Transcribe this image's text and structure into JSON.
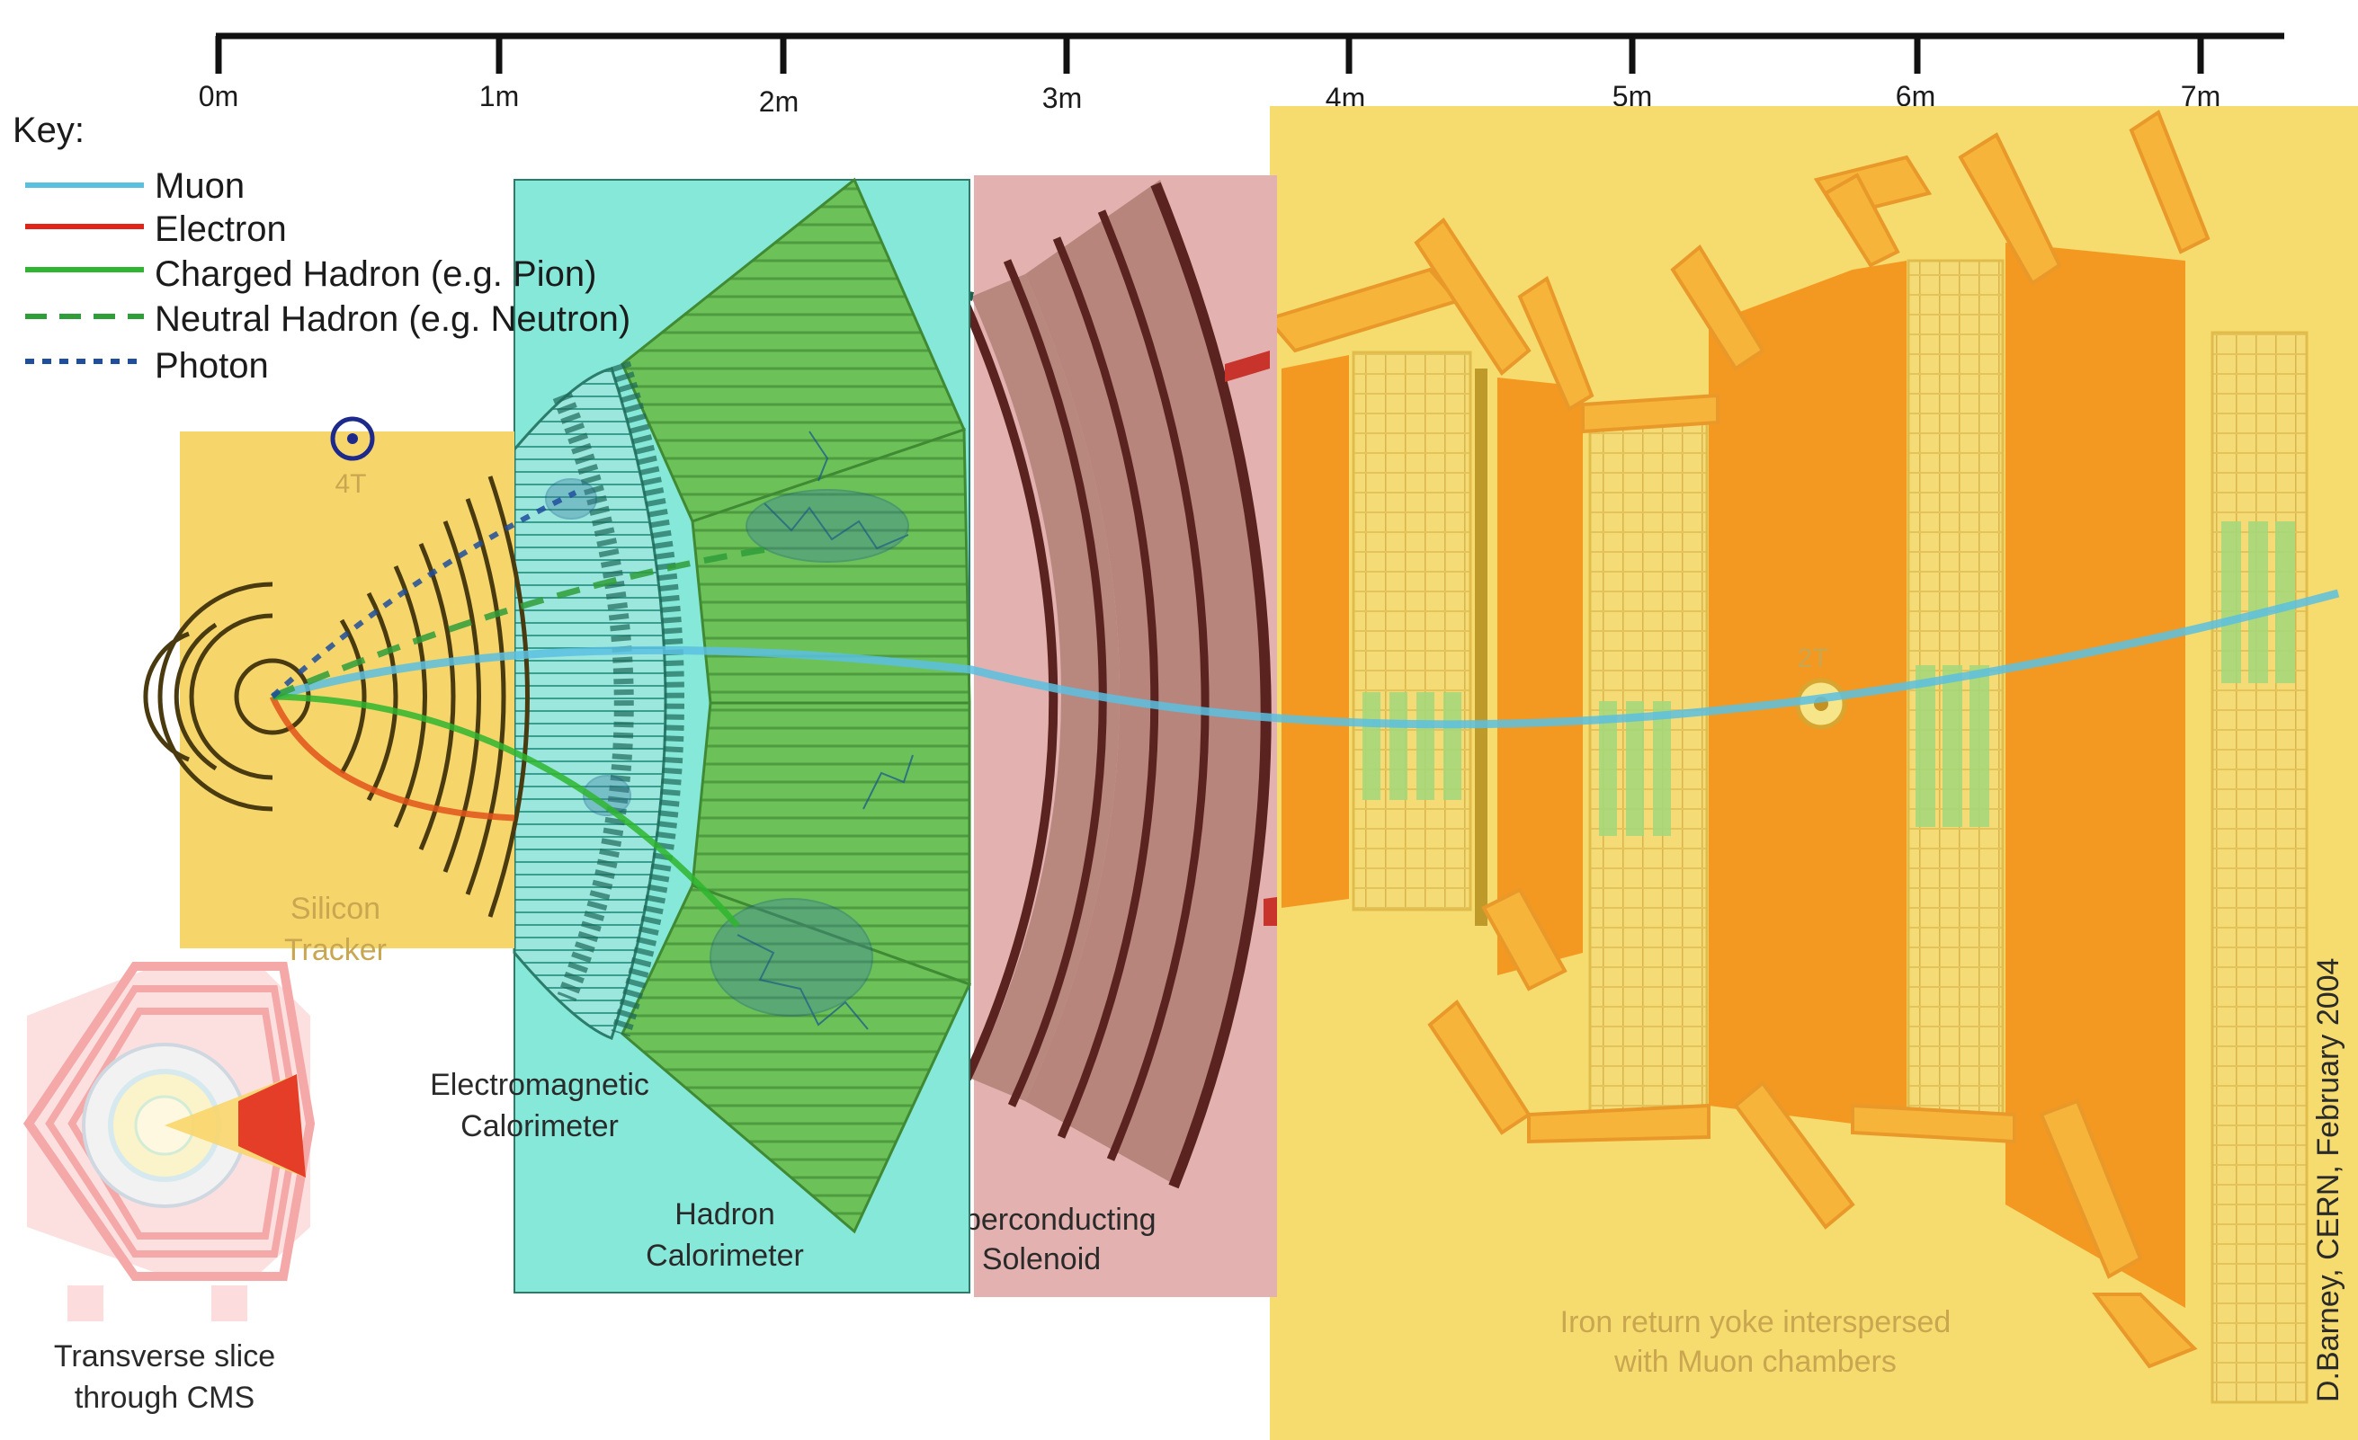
{
  "scale": {
    "ticks": [
      "0m",
      "1m",
      "2m",
      "3m",
      "4m",
      "5m",
      "6m",
      "7m"
    ]
  },
  "key": {
    "title": "Key:",
    "items": [
      {
        "label": "Muon",
        "color": "#5bc0e0",
        "style": "solid"
      },
      {
        "label": "Electron",
        "color": "#e2231a",
        "style": "solid"
      },
      {
        "label": "Charged Hadron (e.g. Pion)",
        "color": "#2fb52f",
        "style": "solid"
      },
      {
        "label": "Neutral Hadron (e.g. Neutron)",
        "color": "#2f9e3a",
        "style": "dashed"
      },
      {
        "label": "Photon",
        "color": "#1f4e9c",
        "style": "dotted"
      }
    ]
  },
  "field": {
    "inner": "4T",
    "outer": "2T"
  },
  "labels": {
    "tracker": [
      "Silicon",
      "Tracker"
    ],
    "ecal": [
      "Electromagnetic",
      "Calorimeter"
    ],
    "hcal": [
      "Hadron",
      "Calorimeter"
    ],
    "solenoid": [
      "Superconducting",
      "Solenoid"
    ],
    "yoke": [
      "Iron return yoke interspersed",
      "with Muon chambers"
    ],
    "slice": [
      "Transverse slice",
      "through CMS"
    ],
    "credit": "D.Barney, CERN, February 2004"
  },
  "colors": {
    "tracker_bg": "#f6d66b",
    "calorimeter_bg": "#86e8d8",
    "solenoid_bg": "#e3b2b0",
    "yoke_bg": "#f6dc6e",
    "yoke_iron": "#f39821",
    "muon_chamber": "#f7d35a",
    "hcal_green": "#6cc259",
    "solenoid_coil": "#5a2320"
  }
}
